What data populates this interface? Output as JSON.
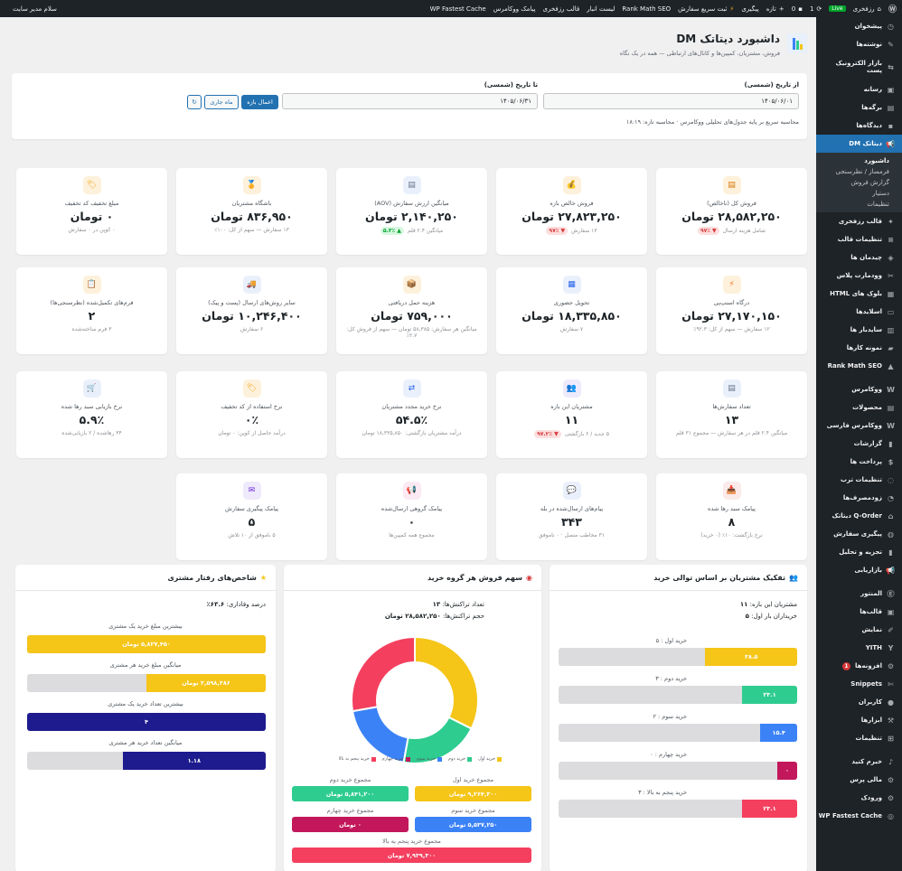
{
  "adminbar": {
    "site_name": "رزفخری",
    "live": "Live",
    "updates": "1",
    "comments": "0",
    "new": "تازه",
    "items": [
      "پیگیری",
      "ثبت سریع سفارش",
      "Rank Math SEO",
      "لیست انبار",
      "قالب رزفخری",
      "پیامک ووکامرس",
      "WP Fastest Cache"
    ],
    "greeting": "سلام مدیر سایت"
  },
  "sidebar": {
    "items": [
      {
        "label": "پیشخوان",
        "icon": "dashboard-icon"
      },
      {
        "label": "نوشته‌ها",
        "icon": "pin-icon"
      },
      {
        "label": "بازار الکترونیک پست",
        "icon": "market-icon"
      },
      {
        "label": "رسانه",
        "icon": "media-icon"
      },
      {
        "label": "برگه‌ها",
        "icon": "pages-icon"
      },
      {
        "label": "دیدگاه‌ها",
        "icon": "comments-icon"
      },
      {
        "label": "دیتاتک DM",
        "icon": "megaphone-icon",
        "active": true
      },
      {
        "label": "قالب رزفخری",
        "icon": "admin-icon"
      },
      {
        "label": "تنظیمات قالب",
        "icon": "settings-icon"
      },
      {
        "label": "چیدمان ها",
        "icon": "layers-icon"
      },
      {
        "label": "وودمارت پلاس",
        "icon": "tool-icon"
      },
      {
        "label": "بلوک های HTML",
        "icon": "grid-icon"
      },
      {
        "label": "اسلایدها",
        "icon": "slides-icon"
      },
      {
        "label": "سایدبار ها",
        "icon": "sidebar-icon"
      },
      {
        "label": "نمونه کارها",
        "icon": "briefcase-icon"
      },
      {
        "label": "Rank Math SEO",
        "icon": "chart-icon"
      },
      {
        "label": "ووکامرس",
        "icon": "woo-icon"
      },
      {
        "label": "محصولات",
        "icon": "archive-icon"
      },
      {
        "label": "ووکامرس فارسی",
        "icon": "woo-icon"
      },
      {
        "label": "گزارشات",
        "icon": "bar-chart-icon"
      },
      {
        "label": "پرداخت ها",
        "icon": "dollar-icon"
      },
      {
        "label": "تنظیمات ترب",
        "icon": "torob-icon"
      },
      {
        "label": "زودمصرف‌ها",
        "icon": "clock-icon"
      },
      {
        "label": "Q-Order دیتاتک",
        "icon": "cart-icon"
      },
      {
        "label": "پیگیری سفارش",
        "icon": "globe-icon"
      },
      {
        "label": "تجزیه و تحلیل",
        "icon": "analytics-icon"
      },
      {
        "label": "بازاریابی",
        "icon": "megaphone-icon"
      },
      {
        "label": "المنتور",
        "icon": "elementor-icon"
      },
      {
        "label": "قالب‌ها",
        "icon": "folder-icon"
      },
      {
        "label": "نمایش",
        "icon": "brush-icon"
      },
      {
        "label": "YITH",
        "icon": "yith-icon"
      },
      {
        "label": "افزونه‌ها",
        "icon": "plugin-icon",
        "badge": "1"
      },
      {
        "label": "Snippets",
        "icon": "scissors-icon"
      },
      {
        "label": "کاربران",
        "icon": "users-icon"
      },
      {
        "label": "ابزارها",
        "icon": "wrench-icon"
      },
      {
        "label": "تنظیمات",
        "icon": "sliders-icon"
      },
      {
        "label": "خبرم کنید",
        "icon": "bell-icon"
      },
      {
        "label": "مالی پرس",
        "icon": "gear-icon"
      },
      {
        "label": "ورودک",
        "icon": "gear-icon"
      },
      {
        "label": "WP Fastest Cache",
        "icon": "cache-icon"
      }
    ],
    "submenu": [
      "داشبورد",
      "فرمساز / نظرسنجی",
      "گزارش فروش",
      "دستیار",
      "تنظیمات"
    ]
  },
  "header": {
    "title": "داشبورد دیتاتک DM",
    "subtitle": "فروش، مشتریان، کمپین‌ها و کانال‌های ارتباطی — همه در یک نگاه"
  },
  "filter": {
    "from_label": "از تاریخ (شمسی)",
    "from_value": "۱۴۰۵/۰۶/۰۱",
    "to_label": "تا تاریخ (شمسی)",
    "to_value": "۱۴۰۵/۰۶/۳۱",
    "apply": "اعمال بازه",
    "current_month": "ماه جاری",
    "refresh_icon": "refresh-icon",
    "note": "محاسبه سریع بر پایه جدول‌های تحلیلی ووکامرس · محاسبه تازه: ۱۸:۱۹"
  },
  "cards": [
    {
      "title": "فروش کل (ناخالص)",
      "value": "۲۸,۵۸۲,۲۵۰ تومان",
      "sub": "شامل هزینه ارسال",
      "pill": "▼ ۹۷٪",
      "pill_dir": "down",
      "icon": "chart-icon",
      "bg": "#fdf1dc"
    },
    {
      "title": "فروش خالص بازه",
      "value": "۲۷,۸۲۳,۲۵۰ تومان",
      "sub": "۱۳ سفارش",
      "pill": "▼ ۹۷٪",
      "pill_dir": "down",
      "icon": "money-bag-icon",
      "bg": "#fdf1dc"
    },
    {
      "title": "میانگین ارزش سفارش (AOV)",
      "value": "۲,۱۴۰,۲۵۰ تومان",
      "sub": "میانگین ۲.۴ قلم",
      "pill": "▲ ۵.۳٪",
      "pill_dir": "up",
      "icon": "document-icon",
      "bg": "#eaf0fb"
    },
    {
      "title": "باشگاه مشتریان",
      "value": "۸۳۶,۹۵۰ تومان",
      "sub": "۱۳ سفارش — سهم از کل: ۱۰۰٪",
      "pill": "",
      "pill_dir": "",
      "icon": "medal-icon",
      "bg": "#fdf1dc"
    },
    {
      "title": "مبلغ تخفیف کد تخفیف",
      "value": "۰ تومان",
      "sub": "۰ کوپن در ۰ سفارش",
      "pill": "",
      "pill_dir": "",
      "icon": "tag-icon",
      "bg": "#fdf1dc"
    },
    {
      "title": "درگاه اسنپ‌پی",
      "value": "۲۷,۱۷۰,۱۵۰ تومان",
      "sub": "۱۲ سفارش — سهم از کل: ۹۲.۳٪",
      "pill": "",
      "pill_dir": "",
      "icon": "bolt-icon",
      "bg": "#fdf1dc"
    },
    {
      "title": "تحویل حضوری",
      "value": "۱۸,۳۳۵,۸۵۰ تومان",
      "sub": "۷ سفارش",
      "pill": "",
      "pill_dir": "",
      "icon": "building-icon",
      "bg": "#eaf0fb"
    },
    {
      "title": "هزینه حمل دریافتی",
      "value": "۷۵۹,۰۰۰ تومان",
      "sub": "میانگین هر سفارش: ۵۸,۳۸۵ تومان — سهم از فروش کل: ۲.۷٪",
      "pill": "",
      "pill_dir": "",
      "icon": "box-icon",
      "bg": "#fdf1dc"
    },
    {
      "title": "سایر روش‌های ارسال (پست و پیک)",
      "value": "۱۰,۲۴۶,۴۰۰ تومان",
      "sub": "۶ سفارش",
      "pill": "",
      "pill_dir": "",
      "icon": "truck-icon",
      "bg": "#eaf0fb"
    },
    {
      "title": "فرم‌های تکمیل‌شده (نظرسنجی‌ها)",
      "value": "۲",
      "sub": "۳ فرم ساخته‌شده",
      "pill": "",
      "pill_dir": "",
      "icon": "clipboard-icon",
      "bg": "#fdf1dc"
    },
    {
      "title": "تعداد سفارش‌ها",
      "value": "۱۳",
      "sub": "میانگین ۲.۴ قلم در هر سفارش — مجموع ۳۱ قلم",
      "pill": "",
      "pill_dir": "",
      "icon": "document-icon",
      "bg": "#eaf0fb"
    },
    {
      "title": "مشتریان این بازه",
      "value": "۱۱",
      "sub": "۵ جدید / ۶ بازگشتی",
      "pill": "▼ ۹۷.۲٪",
      "pill_dir": "down",
      "icon": "users-icon",
      "bg": "#eeeafb"
    },
    {
      "title": "نرخ خرید مجدد مشتریان",
      "value": "۵۴.۵٪",
      "sub": "درآمد مشتریان بازگشتی: ۱۸,۳۳۵,۸۵۰ تومان",
      "pill": "",
      "pill_dir": "",
      "icon": "repeat-icon",
      "bg": "#eaf0fb"
    },
    {
      "title": "نرخ استفاده از کد تخفیف",
      "value": "۰٪",
      "sub": "درآمد حاصل از کوپن: ۰ تومان",
      "pill": "",
      "pill_dir": "",
      "icon": "tag-icon",
      "bg": "#fdf1dc"
    },
    {
      "title": "نرخ بازیابی سبد رها شده",
      "value": "۵.۹٪",
      "sub": "۳۴ رهاشده / ۲ بازیابی‌شده",
      "pill": "",
      "pill_dir": "",
      "icon": "cart-icon",
      "bg": "#eaf0fb"
    },
    {
      "title": "پیامک سبد رها شده",
      "value": "۸",
      "sub": "نرخ بازگشت: ۱۰٪ (۰ خرید)",
      "pill": "",
      "pill_dir": "",
      "icon": "inbox-icon",
      "bg": "#fbeaea"
    },
    {
      "title": "پیام‌های ارسال‌شده در بله",
      "value": "۳۴۳",
      "sub": "۳۱ مخاطب متصل · ۰ ناموفق",
      "pill": "",
      "pill_dir": "",
      "icon": "chat-icon",
      "bg": "#eaf0fb"
    },
    {
      "title": "پیامک گروهی ارسال‌شده",
      "value": "۰",
      "sub": "مجموع همه کمپین‌ها",
      "pill": "",
      "pill_dir": "",
      "icon": "megaphone-icon",
      "bg": "#fbeaf3"
    },
    {
      "title": "پیامک پیگیری سفارش",
      "value": "۵",
      "sub": "۵ ناموفق از ۱۰ تلاش",
      "pill": "",
      "pill_dir": "",
      "icon": "mail-icon",
      "bg": "#eeeafb"
    }
  ],
  "panel_sequence": {
    "title": "تفکیک مشتریان بر اساس توالی خرید",
    "icon": "users-icon",
    "customers_label": "مشتریان این بازه:",
    "customers_value": "۱۱",
    "first_label": "خریداران بار اول:",
    "first_value": "۵",
    "bars": [
      {
        "label": "خرید اول : ۵",
        "value": "۳۸.۵",
        "frac": 0.385,
        "color": "#f5c518"
      },
      {
        "label": "خرید دوم : ۳",
        "value": "۲۳.۱",
        "frac": 0.231,
        "color": "#2ecc8f"
      },
      {
        "label": "خرید سوم : ۲",
        "value": "۱۵.۴",
        "frac": 0.154,
        "color": "#3b82f6"
      },
      {
        "label": "خرید چهارم : ۰",
        "value": "۰",
        "frac": 0.0,
        "color": "#c2185b"
      },
      {
        "label": "خرید پنجم به بالا : ۳",
        "value": "۲۳.۱",
        "frac": 0.231,
        "color": "#f43f5e"
      }
    ]
  },
  "panel_share": {
    "title": "سهم فروش هر گروه خرید",
    "icon": "target-icon",
    "count_label": "تعداد تراکنش‌ها:",
    "count_value": "۱۳",
    "volume_label": "حجم تراکنش‌ها:",
    "volume_value": "۲۸,۵۸۲,۲۵۰ تومان",
    "sums": [
      {
        "label": "مجموع خرید اول",
        "value": "۹,۲۶۴,۳۰۰ تومان",
        "color": "#f5c518"
      },
      {
        "label": "مجموع خرید دوم",
        "value": "۵,۸۴۱,۲۰۰ تومان",
        "color": "#2ecc8f"
      },
      {
        "label": "مجموع خرید سوم",
        "value": "۵,۵۳۷,۲۵۰ تومان",
        "color": "#3b82f6"
      },
      {
        "label": "مجموع خرید چهارم",
        "value": "۰ تومان",
        "color": "#c2185b"
      },
      {
        "label": "مجموع خرید پنجم به بالا",
        "value": "۷,۹۳۹,۳۰۰ تومان",
        "color": "#f43f5e"
      }
    ]
  },
  "panel_behavior": {
    "title": "شاخص‌های رفتار مشتری",
    "icon": "star-icon",
    "loyalty_label": "درصد وفاداری:",
    "loyalty_value": "۶۳.۶٪",
    "bars": [
      {
        "label": "بیشترین مبلغ خرید یک مشتری",
        "value": "۵,۸۲۷,۴۵۰ تومان",
        "frac": 1.0,
        "color": "#f5c518"
      },
      {
        "label": "میانگین مبلغ خرید هر مشتری",
        "value": "۲,۵۹۸,۳۸۶ تومان",
        "frac": 0.5,
        "color": "#f5c518"
      },
      {
        "label": "بیشترین تعداد خرید یک مشتری",
        "value": "۴",
        "frac": 1.0,
        "color": "#1e1b8f"
      },
      {
        "label": "میانگین تعداد خرید هر مشتری",
        "value": "۱.۱۸",
        "frac": 0.6,
        "color": "#1e1b8f"
      }
    ]
  },
  "chart_data": {
    "type": "pie",
    "categories": [
      "خرید اول",
      "خرید دوم",
      "خرید سوم",
      "خرید چهارم",
      "خرید پنجم به بالا"
    ],
    "values": [
      9264300,
      5841200,
      5537250,
      0,
      7939300
    ],
    "colors": [
      "#f5c518",
      "#2ecc8f",
      "#3b82f6",
      "#c2185b",
      "#f43f5e"
    ],
    "legend": "bottom",
    "donut": true
  }
}
